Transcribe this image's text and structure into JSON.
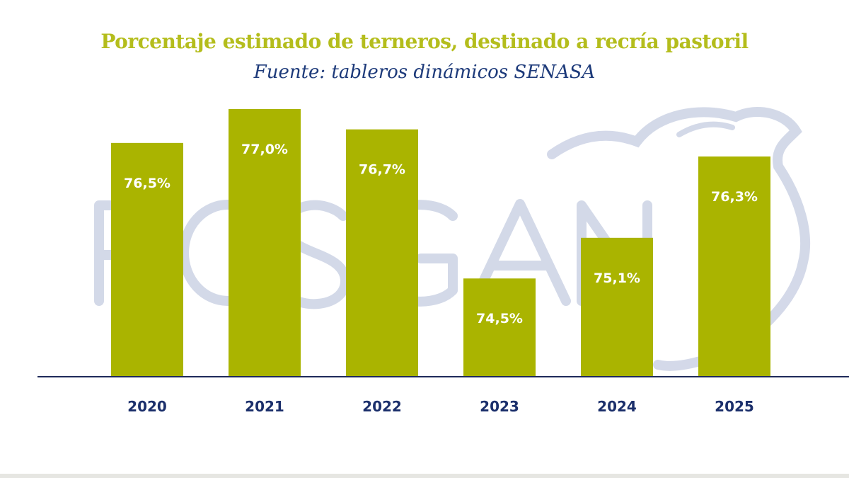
{
  "chart_data": {
    "type": "bar",
    "title": "Porcentaje estimado de terneros, destinado a recría pastoril",
    "subtitle": "Fuente: tableros dinámicos SENASA",
    "categories": [
      "2020",
      "2021",
      "2022",
      "2023",
      "2024",
      "2025"
    ],
    "values": [
      76.5,
      77.0,
      76.7,
      74.5,
      75.1,
      76.3
    ],
    "labels": [
      "76,5%",
      "77,0%",
      "76,7%",
      "74,5%",
      "75,1%",
      "76,3%"
    ],
    "xlabel": "",
    "ylabel": "",
    "ylim": [
      73.05,
      77.0
    ],
    "grid": false,
    "watermark": "ROSGAN",
    "colors": {
      "bar": "#aab400",
      "title": "#b4bd1c",
      "subtitle": "#1d3a7a",
      "axis": "#1f2a5a",
      "tick": "#1b2f6b"
    }
  }
}
